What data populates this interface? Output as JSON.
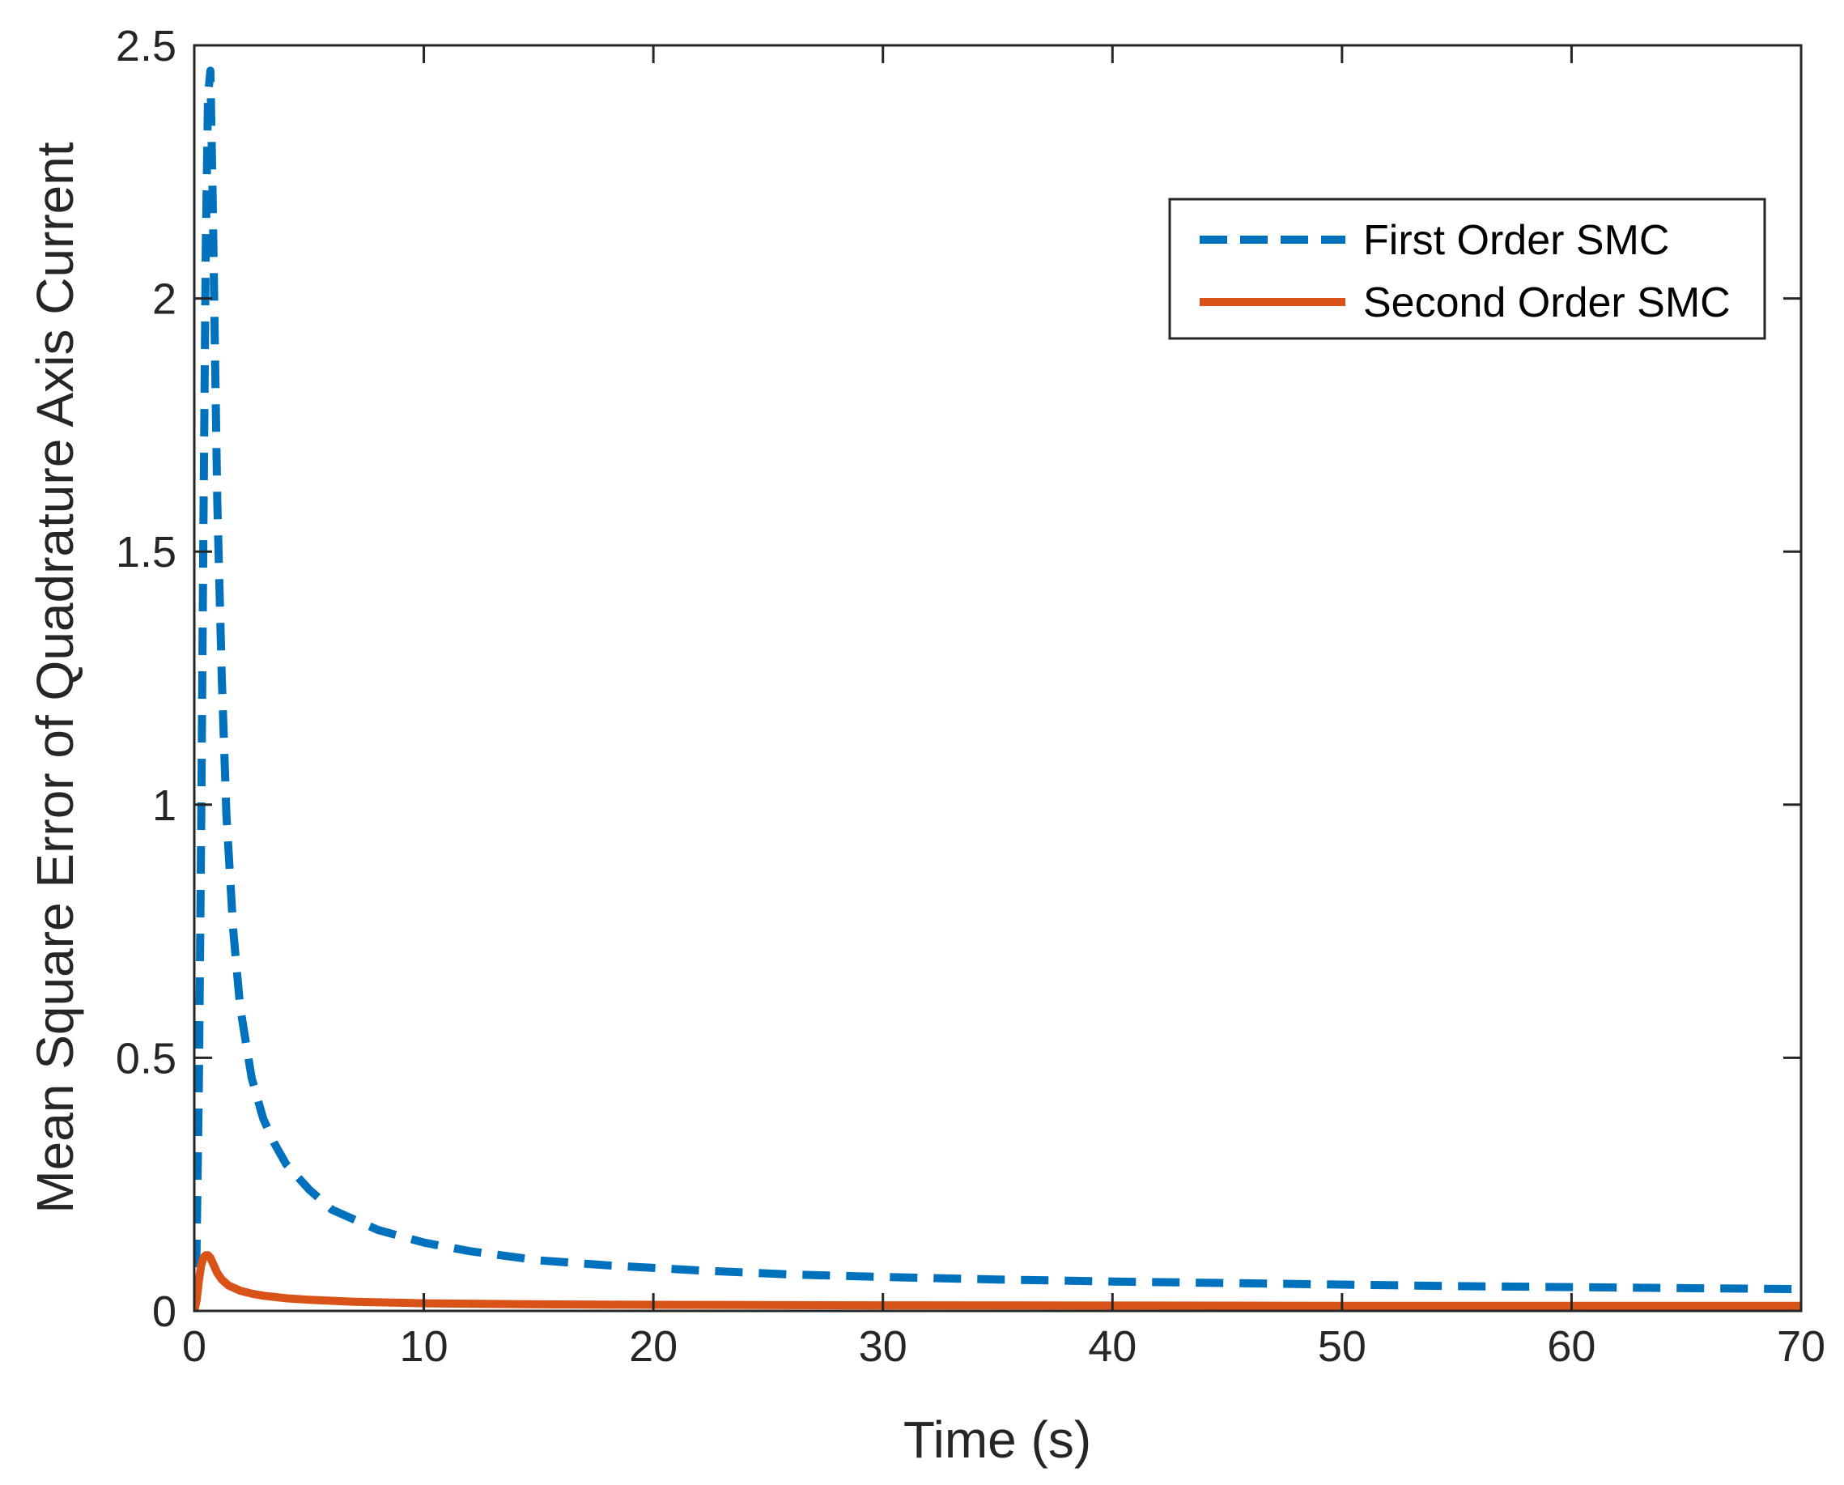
{
  "chart_data": {
    "type": "line",
    "title": "",
    "xlabel": "Time (s)",
    "ylabel": "Mean Square Error of Quadrature Axis Current",
    "xlim": [
      0,
      70
    ],
    "ylim": [
      0,
      2.5
    ],
    "xticks": [
      0,
      10,
      20,
      30,
      40,
      50,
      60,
      70
    ],
    "xtick_labels": [
      "0",
      "10",
      "20",
      "30",
      "40",
      "50",
      "60",
      "70"
    ],
    "yticks": [
      0,
      0.5,
      1,
      1.5,
      2,
      2.5
    ],
    "ytick_labels": [
      "0",
      "0.5",
      "1",
      "1.5",
      "2",
      "2.5"
    ],
    "grid": false,
    "legend_position": "top-right",
    "series": [
      {
        "name": "First Order SMC",
        "color": "#0072BD",
        "style": "dashed",
        "x": [
          0,
          0.1,
          0.2,
          0.3,
          0.4,
          0.5,
          0.6,
          0.7,
          0.8,
          0.9,
          1.0,
          1.2,
          1.4,
          1.7,
          2.0,
          2.5,
          3.0,
          3.5,
          4.0,
          5.0,
          6.0,
          7.0,
          8.0,
          10.0,
          12.0,
          15.0,
          18.0,
          22.0,
          26.0,
          30.0,
          35.0,
          40.0,
          45.0,
          50.0,
          55.0,
          60.0,
          65.0,
          70.0
        ],
        "y": [
          0.0,
          0.12,
          0.45,
          0.95,
          1.55,
          2.1,
          2.4,
          2.45,
          2.2,
          1.9,
          1.6,
          1.25,
          0.98,
          0.75,
          0.6,
          0.46,
          0.38,
          0.33,
          0.29,
          0.24,
          0.2,
          0.18,
          0.16,
          0.135,
          0.118,
          0.1,
          0.09,
          0.08,
          0.072,
          0.067,
          0.062,
          0.058,
          0.055,
          0.052,
          0.049,
          0.047,
          0.045,
          0.043
        ]
      },
      {
        "name": "Second Order SMC",
        "color": "#D95319",
        "style": "solid",
        "x": [
          0,
          0.1,
          0.2,
          0.3,
          0.4,
          0.5,
          0.6,
          0.7,
          0.8,
          1.0,
          1.2,
          1.5,
          2.0,
          2.5,
          3.0,
          4.0,
          5.0,
          7.0,
          10.0,
          15.0,
          20.0,
          30.0,
          40.0,
          50.0,
          60.0,
          70.0
        ],
        "y": [
          0.0,
          0.02,
          0.06,
          0.09,
          0.105,
          0.11,
          0.11,
          0.105,
          0.095,
          0.075,
          0.062,
          0.05,
          0.04,
          0.034,
          0.03,
          0.025,
          0.022,
          0.018,
          0.015,
          0.013,
          0.012,
          0.011,
          0.0105,
          0.01,
          0.01,
          0.01
        ]
      }
    ]
  }
}
